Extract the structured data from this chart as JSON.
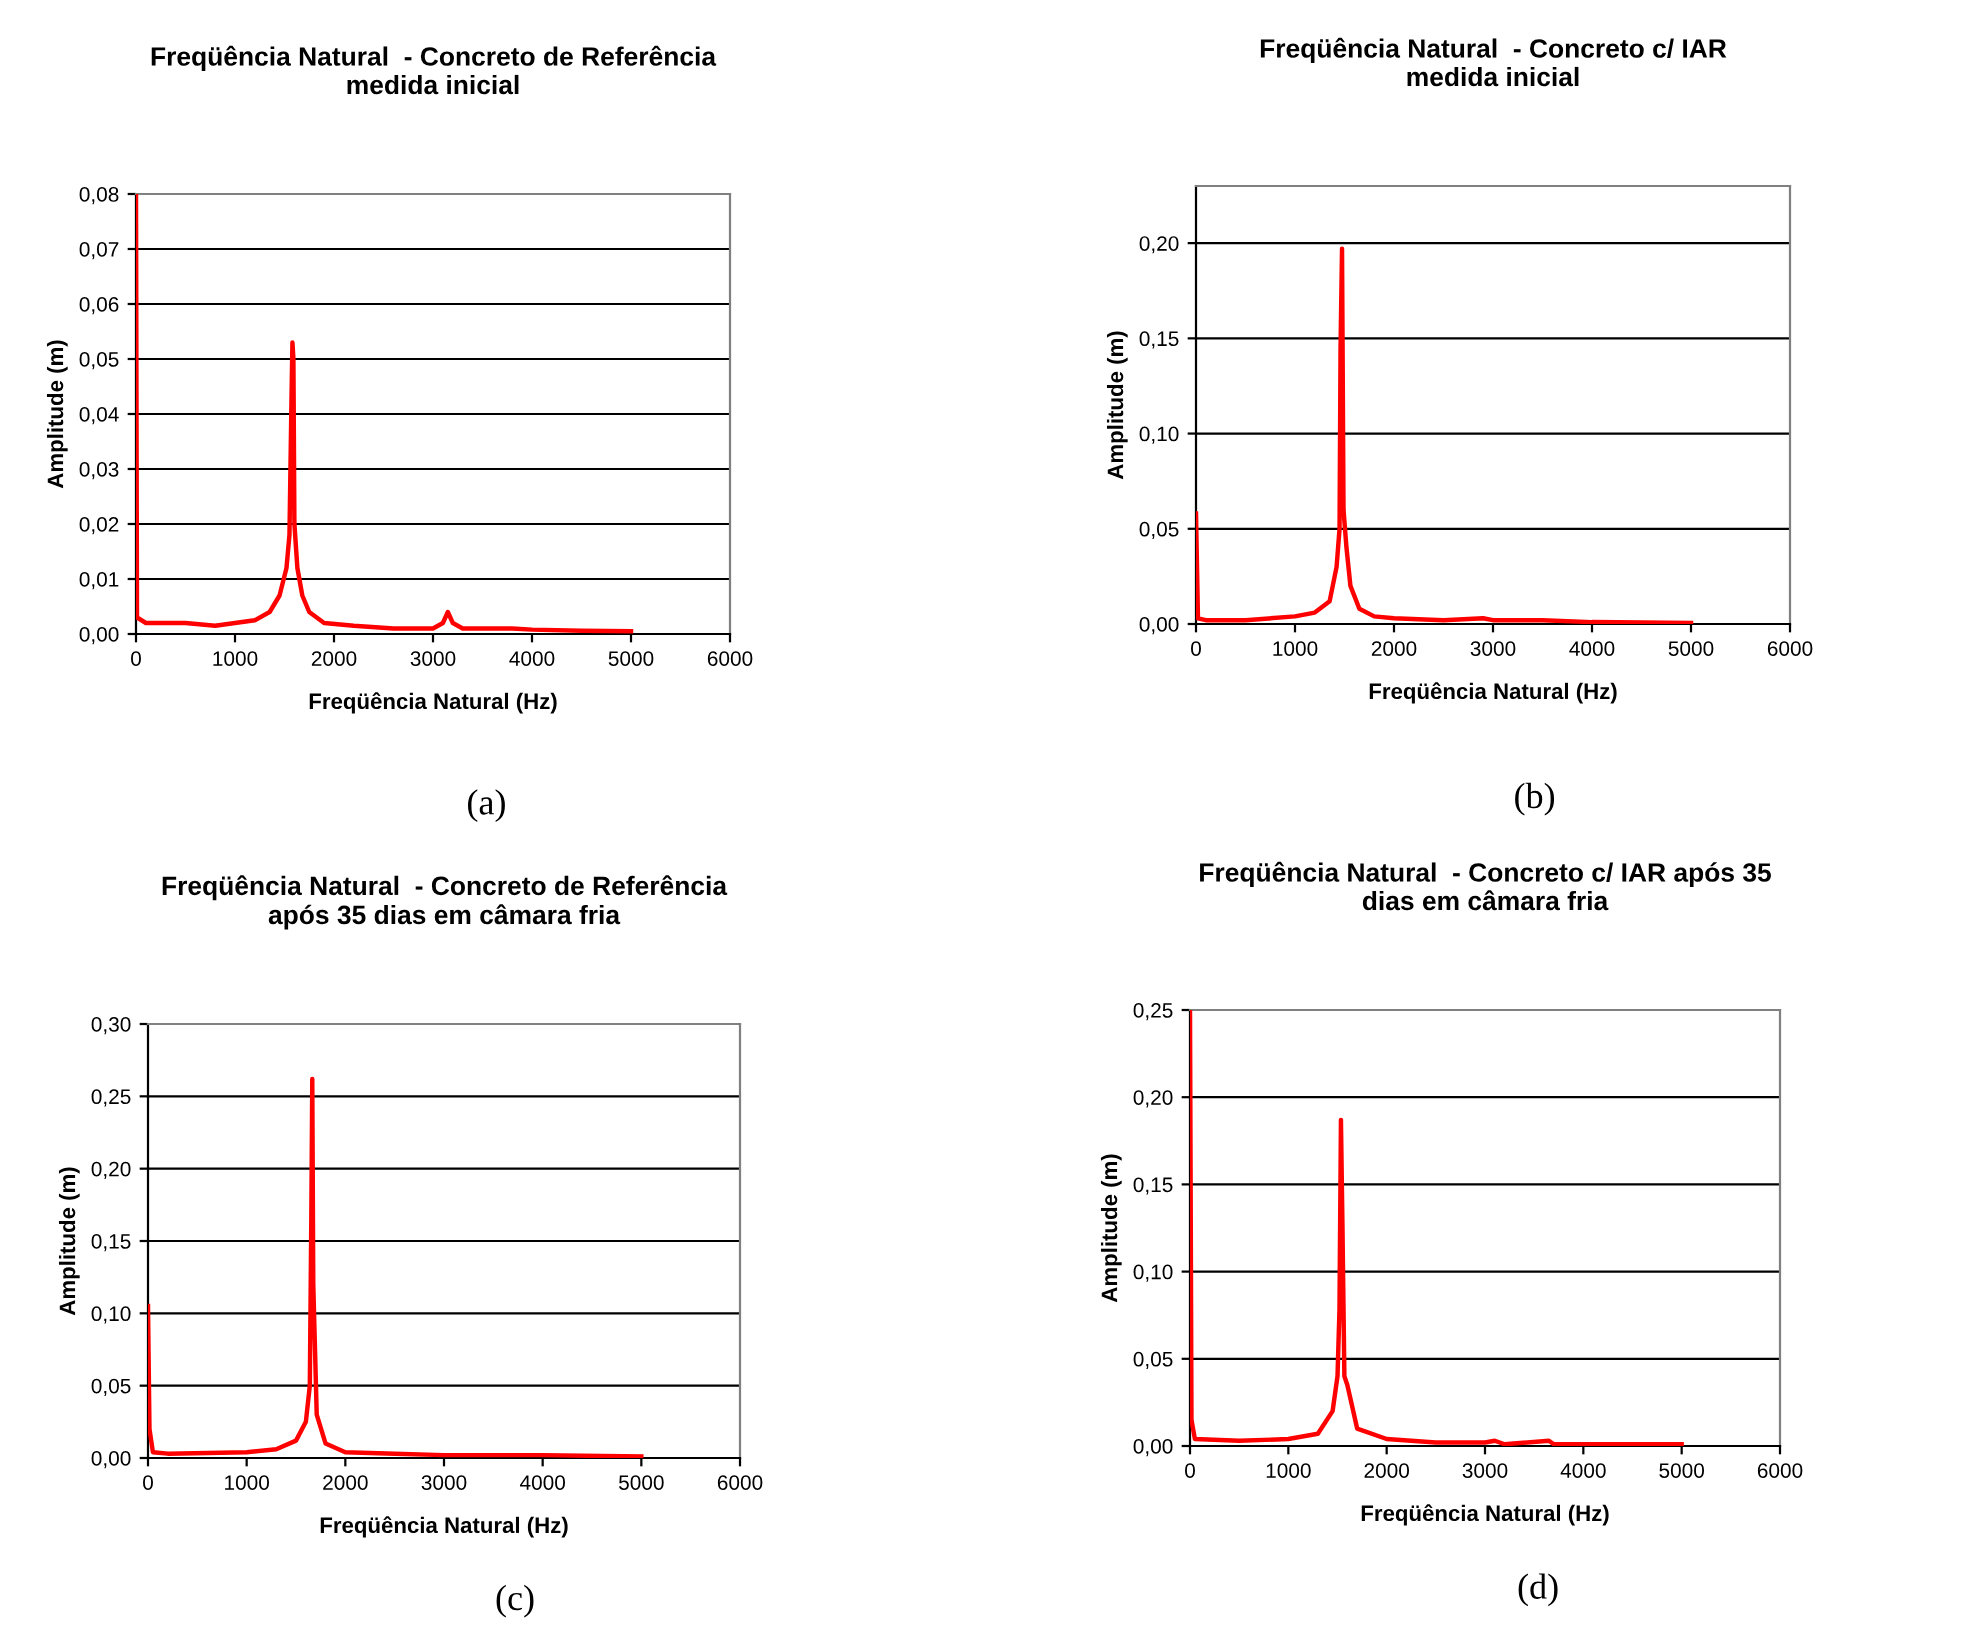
{
  "chart_data": [
    {
      "type": "line",
      "title": "Freqüência Natural  - Concreto de Referência\nmedida inicial",
      "xlabel": "Freqüência Natural (Hz)",
      "ylabel": "Amplitude (m)",
      "annotations": [
        "(a)"
      ],
      "x": [
        0,
        10,
        100,
        300,
        500,
        800,
        1000,
        1200,
        1350,
        1450,
        1520,
        1550,
        1570,
        1580,
        1590,
        1600,
        1630,
        1680,
        1750,
        1900,
        2200,
        2600,
        3000,
        3100,
        3150,
        3200,
        3300,
        3800,
        4000,
        4500,
        5000
      ],
      "series": [
        {
          "color": "#ff0000",
          "values": [
            0.08,
            0.003,
            0.002,
            0.002,
            0.002,
            0.0015,
            0.002,
            0.0025,
            0.004,
            0.007,
            0.012,
            0.018,
            0.042,
            0.053,
            0.05,
            0.02,
            0.012,
            0.007,
            0.004,
            0.002,
            0.0015,
            0.001,
            0.001,
            0.002,
            0.004,
            0.002,
            0.001,
            0.001,
            0.0008,
            0.0006,
            0.0005
          ]
        }
      ],
      "xlim": [
        0,
        6000
      ],
      "xticks": [
        0,
        1000,
        2000,
        3000,
        4000,
        5000,
        6000
      ],
      "ylim": [
        0,
        0.08
      ],
      "yticks": [
        {
          "value": 0,
          "label": "0,00"
        },
        {
          "value": 0.01,
          "label": "0,01"
        },
        {
          "value": 0.02,
          "label": "0,02"
        },
        {
          "value": 0.03,
          "label": "0,03"
        },
        {
          "value": 0.04,
          "label": "0,04"
        },
        {
          "value": 0.05,
          "label": "0,05"
        },
        {
          "value": 0.06,
          "label": "0,06"
        },
        {
          "value": 0.07,
          "label": "0,07"
        },
        {
          "value": 0.08,
          "label": "0,08"
        }
      ],
      "grid": "y",
      "marker": "none",
      "line_style": "solid"
    },
    {
      "type": "line",
      "title": "Freqüência Natural  - Concreto c/ IAR\nmedida inicial",
      "xlabel": "Freqüência Natural (Hz)",
      "ylabel": "Amplitude (m)",
      "annotations": [
        "(b)"
      ],
      "x": [
        0,
        20,
        100,
        500,
        1000,
        1200,
        1350,
        1420,
        1450,
        1460,
        1475,
        1490,
        1520,
        1560,
        1650,
        1800,
        2000,
        2500,
        2900,
        3000,
        3500,
        4000,
        5000
      ],
      "series": [
        {
          "color": "#ff0000",
          "values": [
            0.058,
            0.003,
            0.002,
            0.002,
            0.004,
            0.006,
            0.012,
            0.03,
            0.05,
            0.145,
            0.197,
            0.06,
            0.04,
            0.02,
            0.008,
            0.004,
            0.003,
            0.002,
            0.003,
            0.002,
            0.002,
            0.001,
            0.0005
          ]
        }
      ],
      "xlim": [
        0,
        6000
      ],
      "xticks": [
        0,
        1000,
        2000,
        3000,
        4000,
        5000,
        6000
      ],
      "ylim": [
        0,
        0.23
      ],
      "yticks": [
        {
          "value": 0,
          "label": "0,00"
        },
        {
          "value": 0.05,
          "label": "0,05"
        },
        {
          "value": 0.1,
          "label": "0,10"
        },
        {
          "value": 0.15,
          "label": "0,15"
        },
        {
          "value": 0.2,
          "label": "0,20"
        }
      ],
      "grid": "y",
      "marker": "none",
      "line_style": "solid"
    },
    {
      "type": "line",
      "title": "Freqüência Natural  - Concreto de Referência\napós 35 dias em câmara fria",
      "xlabel": "Freqüência Natural (Hz)",
      "ylabel": "Amplitude (m)",
      "annotations": [
        "(c)"
      ],
      "x": [
        0,
        15,
        50,
        200,
        1000,
        1300,
        1500,
        1600,
        1640,
        1655,
        1665,
        1675,
        1690,
        1710,
        1800,
        2000,
        2500,
        3000,
        4000,
        5000
      ],
      "series": [
        {
          "color": "#ff0000",
          "values": [
            0.105,
            0.02,
            0.004,
            0.003,
            0.004,
            0.006,
            0.012,
            0.025,
            0.05,
            0.165,
            0.262,
            0.12,
            0.082,
            0.03,
            0.01,
            0.004,
            0.003,
            0.002,
            0.002,
            0.001
          ]
        }
      ],
      "xlim": [
        0,
        6000
      ],
      "xticks": [
        0,
        1000,
        2000,
        3000,
        4000,
        5000,
        6000
      ],
      "ylim": [
        0,
        0.3
      ],
      "yticks": [
        {
          "value": 0,
          "label": "0,00"
        },
        {
          "value": 0.05,
          "label": "0,05"
        },
        {
          "value": 0.1,
          "label": "0,10"
        },
        {
          "value": 0.15,
          "label": "0,15"
        },
        {
          "value": 0.2,
          "label": "0,20"
        },
        {
          "value": 0.25,
          "label": "0,25"
        },
        {
          "value": 0.3,
          "label": "0,30"
        }
      ],
      "grid": "y",
      "marker": "none",
      "line_style": "solid"
    },
    {
      "type": "line",
      "title": "Freqüência Natural  - Concreto c/ IAR após 35\ndias em câmara fria",
      "xlabel": "Freqüência Natural (Hz)",
      "ylabel": "Amplitude (m)",
      "annotations": [
        "(d)"
      ],
      "x": [
        0,
        15,
        50,
        500,
        1000,
        1300,
        1450,
        1500,
        1520,
        1535,
        1550,
        1570,
        1600,
        1700,
        2000,
        2500,
        3000,
        3100,
        3200,
        3650,
        3700,
        5000
      ],
      "series": [
        {
          "color": "#ff0000",
          "values": [
            0.25,
            0.015,
            0.004,
            0.003,
            0.004,
            0.007,
            0.02,
            0.04,
            0.078,
            0.187,
            0.128,
            0.04,
            0.035,
            0.01,
            0.004,
            0.002,
            0.002,
            0.003,
            0.001,
            0.003,
            0.001,
            0.001
          ]
        }
      ],
      "xlim": [
        0,
        6000
      ],
      "xticks": [
        0,
        1000,
        2000,
        3000,
        4000,
        5000,
        6000
      ],
      "ylim": [
        0,
        0.25
      ],
      "yticks": [
        {
          "value": 0,
          "label": "0,00"
        },
        {
          "value": 0.05,
          "label": "0,05"
        },
        {
          "value": 0.1,
          "label": "0,10"
        },
        {
          "value": 0.15,
          "label": "0,15"
        },
        {
          "value": 0.2,
          "label": "0,20"
        },
        {
          "value": 0.25,
          "label": "0,25"
        }
      ],
      "grid": "y",
      "marker": "none",
      "line_style": "solid"
    }
  ]
}
